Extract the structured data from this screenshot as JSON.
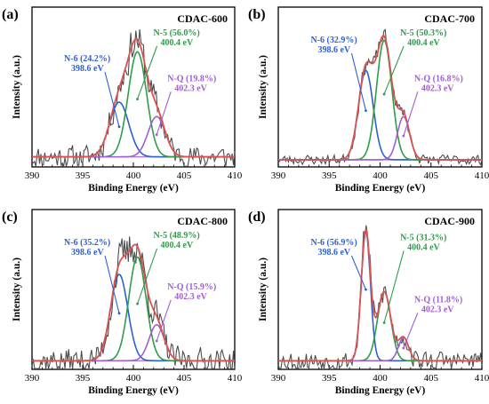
{
  "colors": {
    "raw": "#4d4d4d",
    "envelope": "#d9534f",
    "baseline": "#b07cd6",
    "n6": "#2e5fd0",
    "n5": "#2e9c4a",
    "nq": "#a060d0"
  },
  "chart_data": [
    {
      "type": "line",
      "panel_label": "(a)",
      "title": "CDAC-600",
      "xlabel": "Binding Energy (eV)",
      "ylabel": "Intensity (a.u.)",
      "xlim": [
        390,
        410
      ],
      "x_ticks": [
        390,
        395,
        400,
        405,
        410
      ],
      "y_ticks_shown": false,
      "grid": false,
      "baseline_frac": 0.07,
      "noise_amp": 0.07,
      "seed": 11,
      "components": [
        {
          "key": "n6",
          "name": "N-6",
          "pct": "(24.2%)",
          "position": 398.6,
          "position_label": "398.6 eV",
          "amp": 0.38,
          "sigma": 0.95
        },
        {
          "key": "n5",
          "name": "N-5",
          "pct": "(56.0%)",
          "position": 400.4,
          "position_label": "400.4 eV",
          "amp": 0.73,
          "sigma": 0.9
        },
        {
          "key": "nq",
          "name": "N-Q",
          "pct": "(19.8%)",
          "position": 402.3,
          "position_label": "402.3 eV",
          "amp": 0.28,
          "sigma": 0.85
        }
      ]
    },
    {
      "type": "line",
      "panel_label": "(b)",
      "title": "CDAC-700",
      "xlabel": "Binding Energy (eV)",
      "ylabel": "Intensity (a.u.)",
      "xlim": [
        390,
        410
      ],
      "x_ticks": [
        390,
        395,
        400,
        405,
        410
      ],
      "y_ticks_shown": false,
      "grid": false,
      "baseline_frac": 0.05,
      "noise_amp": 0.03,
      "seed": 23,
      "components": [
        {
          "key": "n6",
          "name": "N-6",
          "pct": "(32.9%)",
          "position": 398.6,
          "position_label": "398.6 eV",
          "amp": 0.62,
          "sigma": 0.72
        },
        {
          "key": "n5",
          "name": "N-5",
          "pct": "(50.3%)",
          "position": 400.4,
          "position_label": "400.4 eV",
          "amp": 0.83,
          "sigma": 0.75
        },
        {
          "key": "nq",
          "name": "N-Q",
          "pct": "(16.8%)",
          "position": 402.3,
          "position_label": "402.3 eV",
          "amp": 0.3,
          "sigma": 0.6
        }
      ]
    },
    {
      "type": "line",
      "panel_label": "(c)",
      "title": "CDAC-800",
      "xlabel": "Binding Energy (eV)",
      "ylabel": "Intensity (a.u.)",
      "xlim": [
        390,
        410
      ],
      "x_ticks": [
        390,
        395,
        400,
        405,
        410
      ],
      "y_ticks_shown": false,
      "grid": false,
      "baseline_frac": 0.06,
      "noise_amp": 0.08,
      "seed": 37,
      "components": [
        {
          "key": "n6",
          "name": "N-6",
          "pct": "(35.2%)",
          "position": 398.6,
          "position_label": "398.6 eV",
          "amp": 0.6,
          "sigma": 0.85
        },
        {
          "key": "n5",
          "name": "N-5",
          "pct": "(48.9%)",
          "position": 400.4,
          "position_label": "400.4 eV",
          "amp": 0.72,
          "sigma": 0.85
        },
        {
          "key": "nq",
          "name": "N-Q",
          "pct": "(15.9%)",
          "position": 402.3,
          "position_label": "402.3 eV",
          "amp": 0.25,
          "sigma": 0.75
        }
      ]
    },
    {
      "type": "line",
      "panel_label": "(d)",
      "title": "CDAC-900",
      "xlabel": "Binding Energy (eV)",
      "ylabel": "Intensity (a.u.)",
      "xlim": [
        390,
        410
      ],
      "x_ticks": [
        390,
        395,
        400,
        405,
        410
      ],
      "y_ticks_shown": false,
      "grid": false,
      "baseline_frac": 0.06,
      "noise_amp": 0.06,
      "seed": 53,
      "components": [
        {
          "key": "n6",
          "name": "N-6",
          "pct": "(56.9%)",
          "position": 398.6,
          "position_label": "398.6 eV",
          "amp": 0.9,
          "sigma": 0.45
        },
        {
          "key": "n5",
          "name": "N-5",
          "pct": "(31.3%)",
          "position": 400.4,
          "position_label": "400.4 eV",
          "amp": 0.48,
          "sigma": 0.65
        },
        {
          "key": "nq",
          "name": "N-Q",
          "pct": "(11.8%)",
          "position": 402.3,
          "position_label": "402.3 eV",
          "amp": 0.16,
          "sigma": 0.5
        }
      ]
    }
  ]
}
